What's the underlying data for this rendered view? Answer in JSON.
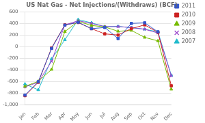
{
  "chart_data": {
    "type": "line",
    "title": "US Nat Gas - Net Injections/(Withdraws) (BCF)",
    "categories": [
      "Jan",
      "Feb",
      "Mar",
      "Apr",
      "May",
      "Jun",
      "Jul",
      "Aug",
      "Sep",
      "Oct",
      "Nov",
      "Dec"
    ],
    "series": [
      {
        "name": "2011",
        "color": "#3355CC",
        "marker": "square",
        "values": [
          -830,
          -600,
          -30,
          370,
          420,
          310,
          330,
          140,
          400,
          410,
          255,
          null
        ]
      },
      {
        "name": "2010",
        "color": "#CC2222",
        "marker": "square",
        "values": [
          -840,
          -610,
          -20,
          375,
          415,
          310,
          220,
          200,
          310,
          375,
          245,
          -670
        ]
      },
      {
        "name": "2009",
        "color": "#77BB00",
        "marker": "triangle",
        "values": [
          -680,
          -595,
          -390,
          260,
          435,
          365,
          340,
          265,
          280,
          160,
          100,
          -730
        ]
      },
      {
        "name": "2008",
        "color": "#9944CC",
        "marker": "x",
        "values": [
          -690,
          -610,
          -250,
          375,
          445,
          400,
          345,
          345,
          330,
          300,
          235,
          -500
        ]
      },
      {
        "name": "2007",
        "color": "#22BBCC",
        "marker": "triangle",
        "values": [
          -640,
          -740,
          -210,
          120,
          465,
          410,
          345,
          350,
          325,
          300,
          255,
          -490
        ]
      }
    ],
    "ylim": [
      -1000,
      600
    ],
    "yticks": [
      {
        "value": -1000,
        "label": "-1,000"
      },
      -800,
      -600,
      -400,
      -200,
      0,
      200,
      400,
      600
    ],
    "grid": true,
    "legend": "right"
  }
}
